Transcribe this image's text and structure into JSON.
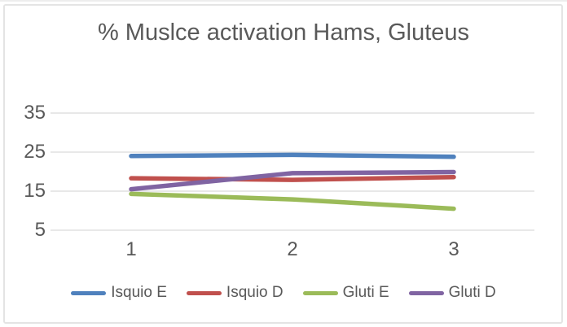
{
  "chart_data": {
    "type": "line",
    "title": "% Muslce activation Hams, Gluteus",
    "categories": [
      "1",
      "2",
      "3"
    ],
    "series": [
      {
        "name": "Isquio E",
        "color": "#4F81BD",
        "values": [
          24.0,
          24.3,
          23.8
        ]
      },
      {
        "name": "Isquio D",
        "color": "#C0504D",
        "values": [
          18.3,
          17.9,
          18.6
        ]
      },
      {
        "name": "Gluti E",
        "color": "#9BBB59",
        "values": [
          14.3,
          12.9,
          10.5
        ]
      },
      {
        "name": "Gluti D",
        "color": "#8064A2",
        "values": [
          15.5,
          19.6,
          19.9
        ]
      }
    ],
    "yticks": [
      5,
      15,
      25,
      35
    ],
    "ylim": [
      5,
      38
    ],
    "xlabel": "",
    "ylabel": "",
    "grid": "horizontal",
    "legend_position": "bottom",
    "colors": {
      "text": "#595959",
      "gridline": "#d9d9d9",
      "background": "#ffffff",
      "border": "#e4e4e4"
    }
  }
}
